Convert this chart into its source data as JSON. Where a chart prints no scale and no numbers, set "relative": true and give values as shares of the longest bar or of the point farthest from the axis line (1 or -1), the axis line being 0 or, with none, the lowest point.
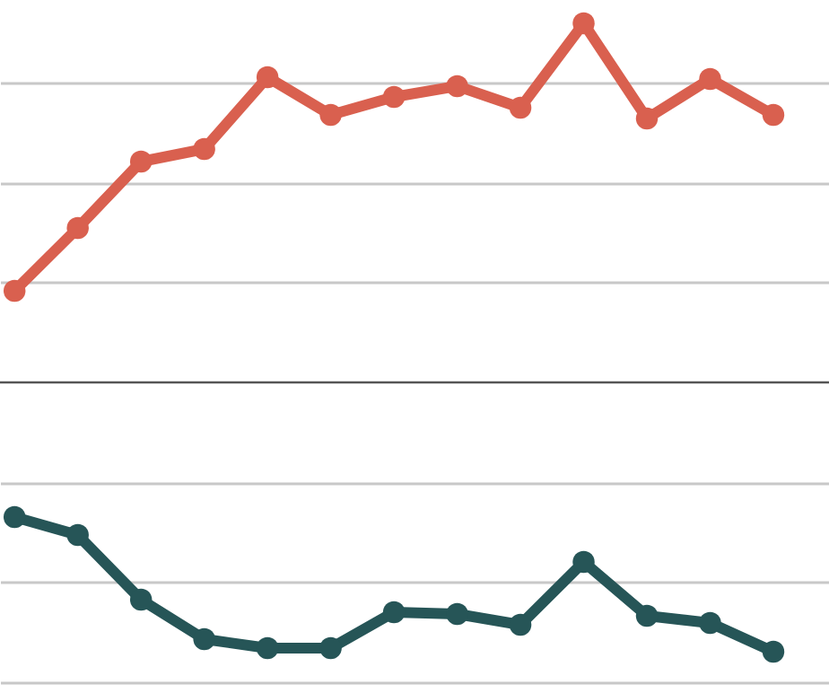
{
  "chart_data": {
    "type": "line",
    "relative": true,
    "grid": "y",
    "marker": "circle",
    "line_style": "solid",
    "categories": [
      null,
      null,
      null,
      null,
      null,
      null,
      null,
      null,
      null,
      null,
      null,
      null,
      null
    ],
    "series": [
      {
        "color": "#d9604f",
        "values": [
          0.255,
          0.43,
          0.615,
          0.65,
          0.85,
          0.745,
          0.795,
          0.825,
          0.765,
          1,
          0.735,
          0.845,
          0.745
        ]
      },
      {
        "color": "#265557",
        "values": [
          -0.375,
          -0.425,
          -0.605,
          -0.715,
          -0.74,
          -0.74,
          -0.64,
          -0.645,
          -0.675,
          -0.5,
          -0.65,
          -0.67,
          -0.75
        ]
      }
    ]
  }
}
